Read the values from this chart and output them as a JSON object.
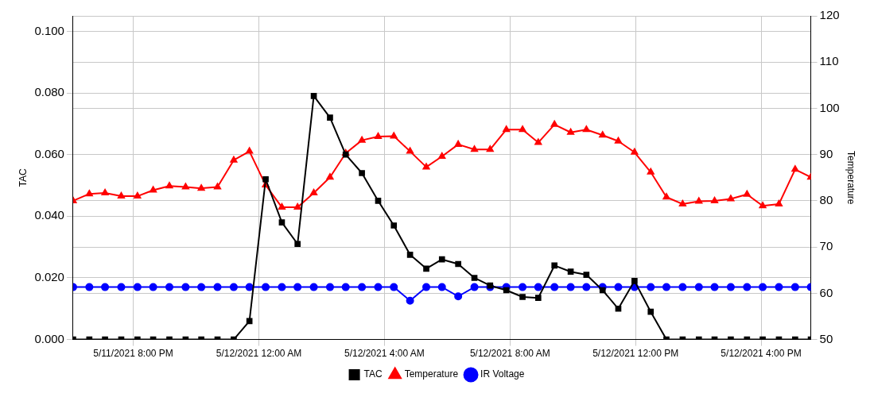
{
  "chart_data": {
    "type": "line",
    "xlabel": null,
    "ylabel": "TAC",
    "y2label": "Temperature",
    "x": [
      "2021-05-11T18:05",
      "2021-05-11T18:36",
      "2021-05-11T19:06",
      "2021-05-11T19:37",
      "2021-05-11T20:08",
      "2021-05-11T20:38",
      "2021-05-11T21:09",
      "2021-05-11T21:40",
      "2021-05-11T22:10",
      "2021-05-11T22:41",
      "2021-05-11T23:12",
      "2021-05-11T23:42",
      "2021-05-12T00:13",
      "2021-05-12T00:44",
      "2021-05-12T01:14",
      "2021-05-12T01:45",
      "2021-05-12T02:16",
      "2021-05-12T02:46",
      "2021-05-12T03:17",
      "2021-05-12T03:48",
      "2021-05-12T04:18",
      "2021-05-12T04:49",
      "2021-05-12T05:20",
      "2021-05-12T05:50",
      "2021-05-12T06:21",
      "2021-05-12T06:52",
      "2021-05-12T07:22",
      "2021-05-12T07:53",
      "2021-05-12T08:24",
      "2021-05-12T08:54",
      "2021-05-12T09:25",
      "2021-05-12T09:56",
      "2021-05-12T10:26",
      "2021-05-12T10:57",
      "2021-05-12T11:27",
      "2021-05-12T11:58",
      "2021-05-12T12:29",
      "2021-05-12T12:59",
      "2021-05-12T13:30",
      "2021-05-12T14:01",
      "2021-05-12T14:31",
      "2021-05-12T15:02",
      "2021-05-12T15:33",
      "2021-05-12T16:03",
      "2021-05-12T16:34",
      "2021-05-12T17:05",
      "2021-05-12T17:35"
    ],
    "xlim": [
      "2021-05-11T18:05",
      "2021-05-12T17:35"
    ],
    "xticks": [
      {
        "value": "2021-05-11T20:00",
        "label": "5/11/2021 8:00 PM"
      },
      {
        "value": "2021-05-12T00:00",
        "label": "5/12/2021 12:00 AM"
      },
      {
        "value": "2021-05-12T04:00",
        "label": "5/12/2021 4:00 AM"
      },
      {
        "value": "2021-05-12T08:00",
        "label": "5/12/2021 8:00 AM"
      },
      {
        "value": "2021-05-12T12:00",
        "label": "5/12/2021 12:00 PM"
      },
      {
        "value": "2021-05-12T16:00",
        "label": "5/12/2021 4:00 PM"
      }
    ],
    "ylim": [
      0,
      0.105
    ],
    "yticks": [
      {
        "value": 0,
        "label": "0.000"
      },
      {
        "value": 0.02,
        "label": "0.020"
      },
      {
        "value": 0.04,
        "label": "0.040"
      },
      {
        "value": 0.06,
        "label": "0.060"
      },
      {
        "value": 0.08,
        "label": "0.080"
      },
      {
        "value": 0.1,
        "label": "0.100"
      }
    ],
    "y2lim": [
      50,
      120
    ],
    "y2ticks": [
      50,
      60,
      70,
      80,
      90,
      100,
      110,
      120
    ],
    "grid": true,
    "legend": "bottom",
    "line_style": "solid",
    "series": [
      {
        "name": "TAC",
        "color": "#000000",
        "marker": "square",
        "values": [
          0,
          0,
          0,
          0,
          0,
          0,
          0,
          0,
          0,
          0,
          0,
          0.006,
          0.052,
          0.038,
          0.031,
          0.079,
          0.072,
          0.06,
          0.054,
          0.045,
          0.037,
          0.0275,
          0.023,
          0.026,
          0.0245,
          0.02,
          0.0175,
          0.016,
          0.0138,
          0.0135,
          0.024,
          0.022,
          0.021,
          0.016,
          0.01,
          0.019,
          0.009,
          0,
          0,
          0,
          0,
          0,
          0,
          0,
          0,
          0,
          0
        ]
      },
      {
        "name": "Temperature",
        "color": "#ff0000",
        "marker": "triangle",
        "axis": "y2",
        "values": [
          80.0,
          81.5,
          81.7,
          81.0,
          81.0,
          82.3,
          83.2,
          83.0,
          82.7,
          83.0,
          88.8,
          90.7,
          83.4,
          78.6,
          78.6,
          81.7,
          85.1,
          90.3,
          93.1,
          93.9,
          94.0,
          90.7,
          87.3,
          89.6,
          92.2,
          91.1,
          91.1,
          95.4,
          95.4,
          92.6,
          96.5,
          94.8,
          95.4,
          94.2,
          92.9,
          90.5,
          86.2,
          80.8,
          79.3,
          79.9,
          80.0,
          80.4,
          81.4,
          78.9,
          79.3,
          86.8,
          85.1
        ]
      },
      {
        "name": "IR Voltage",
        "color": "#0000ff",
        "marker": "circle",
        "values": [
          0.017,
          0.017,
          0.017,
          0.017,
          0.017,
          0.017,
          0.017,
          0.017,
          0.017,
          0.017,
          0.017,
          0.017,
          0.017,
          0.017,
          0.017,
          0.017,
          0.017,
          0.017,
          0.017,
          0.017,
          0.017,
          0.0126,
          0.017,
          0.017,
          0.014,
          0.017,
          0.017,
          0.017,
          0.017,
          0.017,
          0.017,
          0.017,
          0.017,
          0.017,
          0.017,
          0.017,
          0.017,
          0.017,
          0.017,
          0.017,
          0.017,
          0.017,
          0.017,
          0.017,
          0.017,
          0.017,
          0.017
        ]
      }
    ]
  }
}
